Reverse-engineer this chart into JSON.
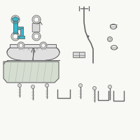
{
  "background_color": "#f8f8f5",
  "highlight_color": "#3bb8cc",
  "line_color": "#999999",
  "part_color": "#c0c0c0",
  "edge_color": "#666666",
  "light_part": "#d8d8d8",
  "tank_fill": "#e0e0e0",
  "shield_fill": "#d4ddd0"
}
